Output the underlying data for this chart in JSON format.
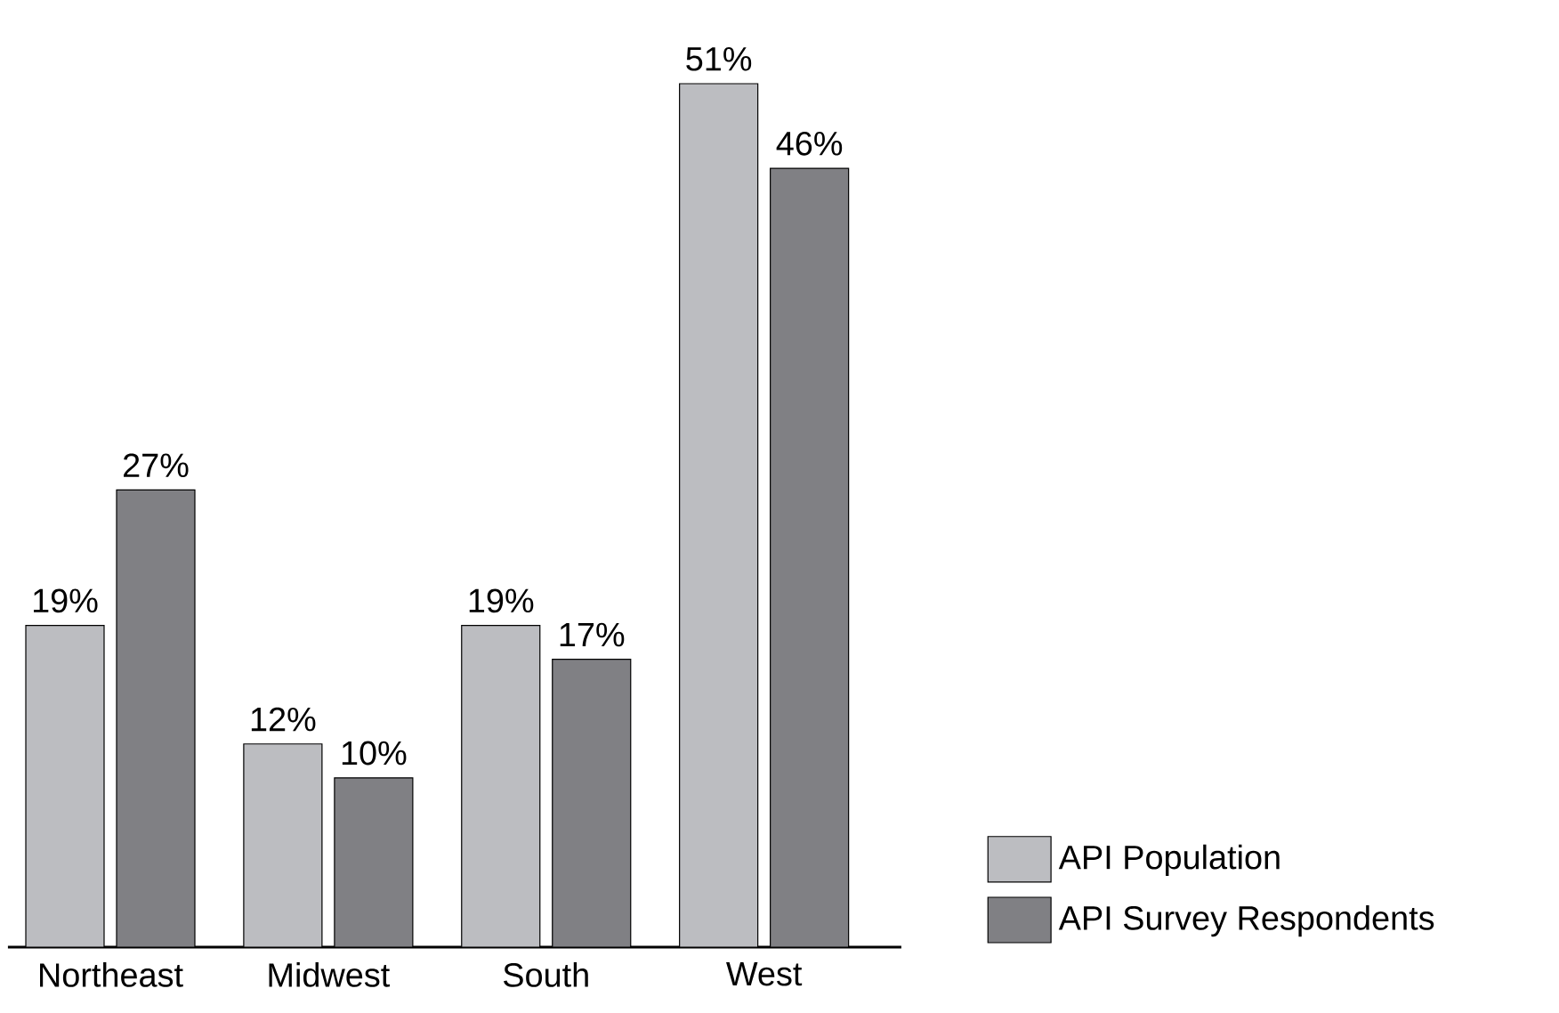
{
  "chart_data": {
    "type": "bar",
    "categories": [
      "Northeast",
      "Midwest",
      "South",
      "West"
    ],
    "series": [
      {
        "name": "API Population",
        "color": "#bcbdc1",
        "values": [
          19,
          12,
          19,
          51
        ],
        "value_labels": [
          "19%",
          "12%",
          "19%",
          "51%"
        ]
      },
      {
        "name": "API Survey Respondents",
        "color": "#808084",
        "values": [
          27,
          10,
          17,
          46
        ],
        "value_labels": [
          "27%",
          "10%",
          "17%",
          "46%"
        ]
      }
    ],
    "legend": "right"
  }
}
